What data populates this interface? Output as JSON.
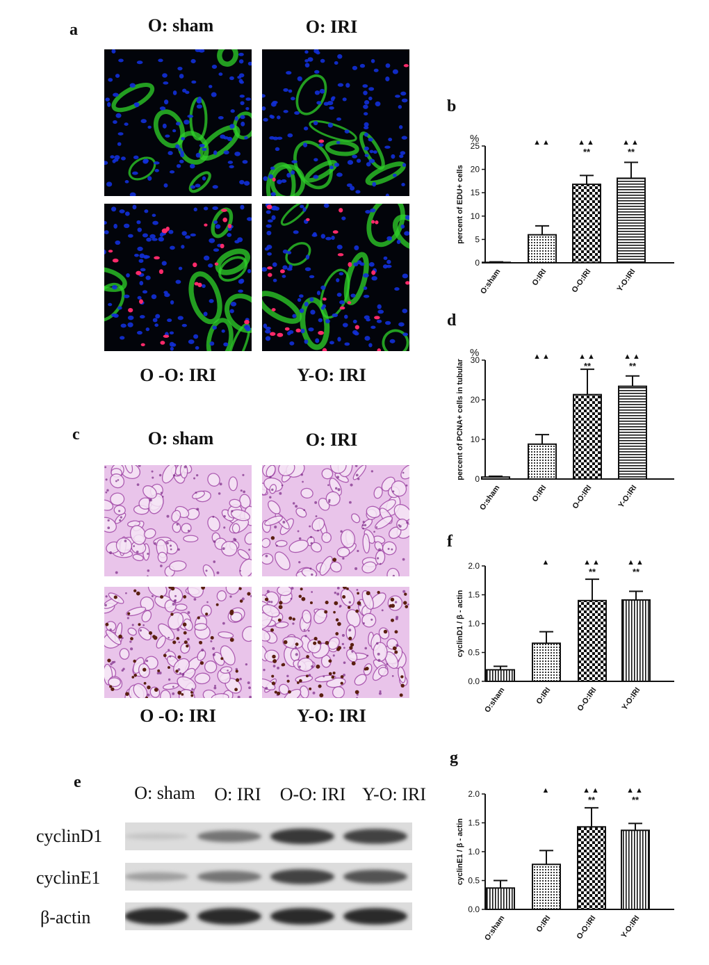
{
  "panel_letters": {
    "a": "a",
    "b": "b",
    "c": "c",
    "d": "d",
    "e": "e",
    "f": "f",
    "g": "g"
  },
  "image_captions": {
    "a_top_left": "O: sham",
    "a_top_right": "O: IRI",
    "a_bottom_left": "O -O: IRI",
    "a_bottom_right": "Y-O: IRI",
    "c_top_left": "O: sham",
    "c_top_right": "O: IRI",
    "c_bottom_left": "O -O: IRI",
    "c_bottom_right": "Y-O: IRI"
  },
  "western_blot": {
    "lanes": [
      "O: sham",
      "O: IRI",
      "O-O: IRI",
      "Y-O: IRI"
    ],
    "rows": [
      {
        "label": "cyclinD1",
        "intensity": [
          0.08,
          0.55,
          0.9,
          0.85
        ]
      },
      {
        "label": "cyclinE1",
        "intensity": [
          0.3,
          0.55,
          0.85,
          0.75
        ]
      },
      {
        "label": "β-actin",
        "intensity": [
          0.98,
          0.98,
          0.98,
          0.98
        ]
      }
    ]
  },
  "colors": {
    "fluo_background": "#02040a",
    "nuclei_blue": "#1230d8",
    "tubule_green": "#2fd12a",
    "edu_pink": "#ff2a6a",
    "pas_background": "#ecc8ee",
    "pas_tubule": "#a24aa8",
    "pcna_brown": "#5a1f10"
  },
  "chart_data": [
    {
      "panel": "b",
      "type": "bar",
      "categories": [
        "O:sham",
        "O:IRI",
        "O-O:IRI",
        "Y-O:IRI"
      ],
      "values": [
        0.1,
        6.0,
        16.8,
        18.1
      ],
      "errors": [
        0.1,
        1.9,
        1.9,
        3.4
      ],
      "patterns": [
        "hstripe",
        "dots",
        "checker",
        "hstripe"
      ],
      "ylabel": "percent of EDU+ cells",
      "unit": "%",
      "ylim": [
        0,
        25
      ],
      "yticks": [
        "0",
        "5",
        "10",
        "15",
        "20",
        "25"
      ],
      "significance_triangles": [
        "",
        "▲▲",
        "▲▲",
        "▲▲"
      ],
      "significance_stars": [
        "",
        "",
        "**",
        "**"
      ]
    },
    {
      "panel": "d",
      "type": "bar",
      "categories": [
        "O:sham",
        "O:IRI",
        "O-O:IRI",
        "Y-O:IRI"
      ],
      "values": [
        0.5,
        8.8,
        21.3,
        23.4
      ],
      "errors": [
        0.2,
        2.4,
        6.4,
        2.6
      ],
      "patterns": [
        "hstripe",
        "dots",
        "checker",
        "hstripe"
      ],
      "ylabel": "percent of PCNA+ cells in tubular",
      "unit": "%",
      "ylim": [
        0,
        30
      ],
      "yticks": [
        "0",
        "10",
        "20",
        "30"
      ],
      "significance_triangles": [
        "",
        "▲▲",
        "▲▲",
        "▲▲"
      ],
      "significance_stars": [
        "",
        "",
        "**",
        "**"
      ]
    },
    {
      "panel": "f",
      "type": "bar",
      "categories": [
        "O:sham",
        "O:IRI",
        "O-O:IRI",
        "Y-O:IRI"
      ],
      "values": [
        0.2,
        0.66,
        1.4,
        1.41
      ],
      "errors": [
        0.06,
        0.2,
        0.37,
        0.15
      ],
      "patterns": [
        "vstripe",
        "dots",
        "checker",
        "vstripe"
      ],
      "ylabel": "cyclinD1 / β - actin",
      "ylim": [
        0,
        2.0
      ],
      "yticks": [
        "0.0",
        "0.5",
        "1.0",
        "1.5",
        "2.0"
      ],
      "significance_triangles": [
        "",
        "▲",
        "▲▲",
        "▲▲"
      ],
      "significance_stars": [
        "",
        "",
        "**",
        "**"
      ]
    },
    {
      "panel": "g",
      "type": "bar",
      "categories": [
        "O:sham",
        "O:IRI",
        "O-O:IRI",
        "Y-O:IRI"
      ],
      "values": [
        0.37,
        0.78,
        1.43,
        1.37
      ],
      "errors": [
        0.13,
        0.24,
        0.33,
        0.12
      ],
      "patterns": [
        "vstripe",
        "dots",
        "checker",
        "vstripe"
      ],
      "ylabel": "cyclinE1 / β - actin",
      "ylim": [
        0,
        2.0
      ],
      "yticks": [
        "0.0",
        "0.5",
        "1.0",
        "1.5",
        "2.0"
      ],
      "significance_triangles": [
        "",
        "▲",
        "▲▲",
        "▲▲"
      ],
      "significance_stars": [
        "",
        "",
        "**",
        "**"
      ]
    }
  ]
}
